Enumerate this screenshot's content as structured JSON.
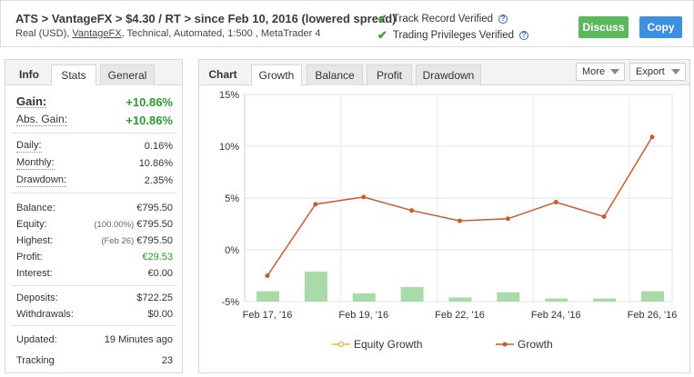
{
  "header": {
    "title": "ATS > VantageFX > $4.30 / RT > since Feb 10, 2016 (lowered spread)",
    "subtitle_prefix": "Real (USD), ",
    "subtitle_broker": "VantageFX",
    "subtitle_suffix": ", Technical, Automated, 1:500 , MetaTrader 4",
    "verify1": "Track Record Verified",
    "verify2": "Trading Privileges Verified",
    "help_glyph": "?",
    "discuss": "Discuss",
    "copy": "Copy"
  },
  "left_tabs": {
    "info": "Info",
    "stats": "Stats",
    "general": "General"
  },
  "stats": {
    "gain": {
      "label": "Gain:",
      "value": "+10.86%"
    },
    "abs_gain": {
      "label": "Abs. Gain:",
      "value": "+10.86%"
    },
    "daily": {
      "label": "Daily:",
      "value": "0.16%"
    },
    "monthly": {
      "label": "Monthly:",
      "value": "10.86%"
    },
    "drawdown": {
      "label": "Drawdown:",
      "value": "2.35%"
    },
    "balance": {
      "label": "Balance:",
      "value": "€795.50"
    },
    "equity": {
      "label": "Equity:",
      "note": "(100.00%)",
      "value": "€795.50"
    },
    "highest": {
      "label": "Highest:",
      "note": "(Feb 26)",
      "value": "€795.50"
    },
    "profit": {
      "label": "Profit:",
      "value": "€29.53"
    },
    "interest": {
      "label": "Interest:",
      "value": "€0.00"
    },
    "deposits": {
      "label": "Deposits:",
      "value": "$722.25"
    },
    "withdrawals": {
      "label": "Withdrawals:",
      "value": "$0.00"
    },
    "updated": {
      "label": "Updated:",
      "value": "19 Minutes ago"
    },
    "tracking": {
      "label": "Tracking",
      "value": "23"
    }
  },
  "chart_tabs": {
    "label": "Chart",
    "growth": "Growth",
    "balance": "Balance",
    "profit": "Profit",
    "drawdown": "Drawdown",
    "more": "More",
    "export": "Export"
  },
  "colors": {
    "growth_line": "#cc5a2a",
    "equity_line": "#f2b233",
    "bars": "#a8dba8",
    "green": "#2a9d2a"
  },
  "chart_data": {
    "type": "line",
    "ylim": [
      -5,
      15
    ],
    "yticks": [
      15,
      10,
      5,
      0,
      -5
    ],
    "ytick_labels": [
      "15%",
      "10%",
      "5%",
      "0%",
      "-5%"
    ],
    "x_tick_labels": [
      "Feb 17, '16",
      "Feb 19, '16",
      "Feb 22, '16",
      "Feb 24, '16",
      "Feb 26, '16"
    ],
    "x_tick_index": [
      0,
      2,
      4,
      6,
      8
    ],
    "grid": true,
    "legend_position": "bottom",
    "series": [
      {
        "name": "Equity Growth",
        "values": []
      },
      {
        "name": "Growth",
        "values": [
          -2.5,
          4.4,
          5.1,
          3.8,
          2.8,
          3.0,
          4.6,
          3.2,
          10.9
        ]
      }
    ],
    "bars": [
      1.0,
      2.9,
      0.8,
      1.4,
      0.4,
      0.9,
      0.3,
      0.3,
      1.0
    ]
  }
}
